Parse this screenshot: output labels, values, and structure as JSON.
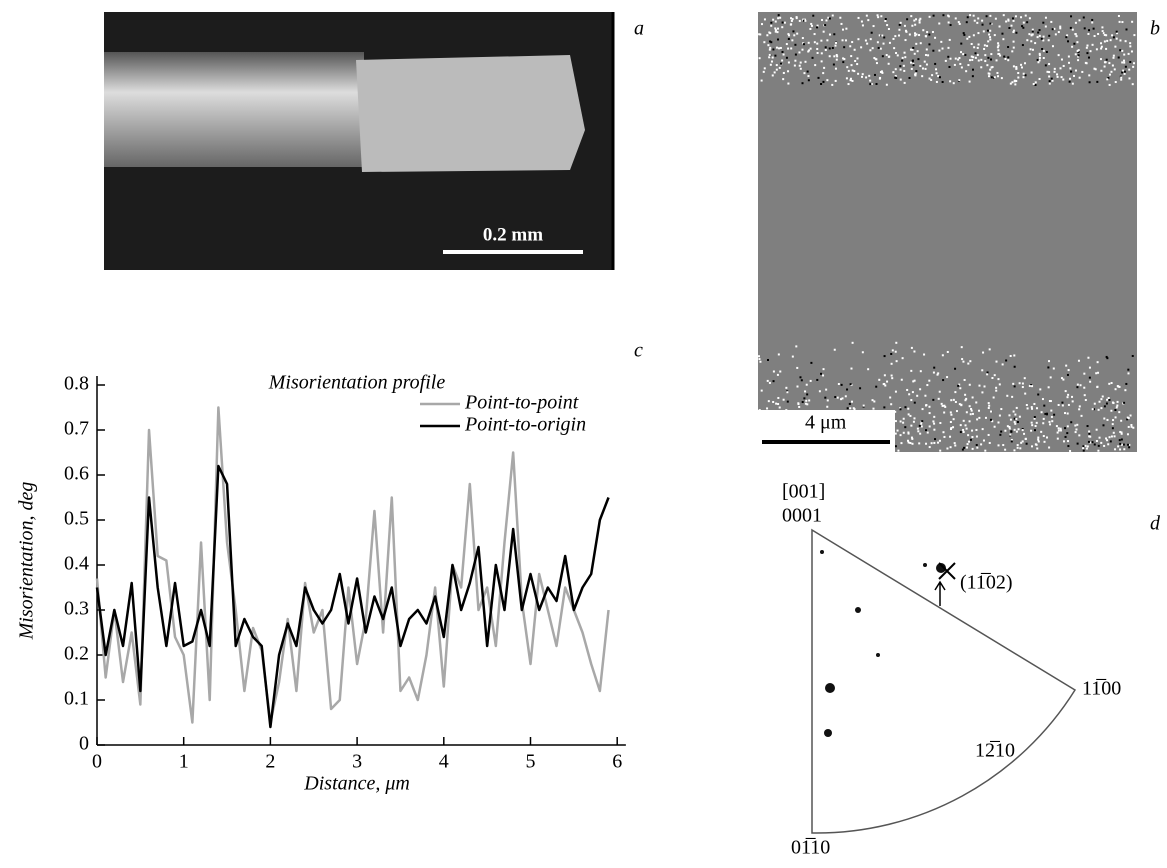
{
  "panels": {
    "a": {
      "label": "a",
      "scale_bar": "0.2 mm"
    },
    "b": {
      "label": "b",
      "scale_bar": "4 μm"
    },
    "c": {
      "label": "c"
    },
    "d": {
      "label": "d",
      "top_index": "[001]",
      "top_label": "0001",
      "marked_plane": "(11̅02)",
      "right_label": "11̅00",
      "arc_label": "12̅10",
      "bottom_label": "01̅10"
    }
  },
  "chart_data": {
    "type": "line",
    "title": "Misorientation profile",
    "x_label": "Distance, μm",
    "y_label": "Misorientation, deg",
    "x": [
      0,
      0.1,
      0.2,
      0.3,
      0.4,
      0.5,
      0.6,
      0.7,
      0.8,
      0.9,
      1,
      1.1,
      1.2,
      1.3,
      1.4,
      1.5,
      1.6,
      1.7,
      1.8,
      1.9,
      2,
      2.1,
      2.2,
      2.3,
      2.4,
      2.5,
      2.6,
      2.7,
      2.8,
      2.9,
      3,
      3.1,
      3.2,
      3.3,
      3.4,
      3.5,
      3.6,
      3.7,
      3.8,
      3.9,
      4,
      4.1,
      4.2,
      4.3,
      4.4,
      4.5,
      4.6,
      4.7,
      4.8,
      4.9,
      5,
      5.1,
      5.2,
      5.3,
      5.4,
      5.5,
      5.6,
      5.7,
      5.8,
      5.9
    ],
    "series": [
      {
        "name": "Point-to-point",
        "color": "#a8a8a8",
        "values": [
          0.37,
          0.15,
          0.3,
          0.14,
          0.25,
          0.09,
          0.7,
          0.42,
          0.41,
          0.24,
          0.2,
          0.05,
          0.45,
          0.1,
          0.75,
          0.45,
          0.3,
          0.12,
          0.26,
          0.21,
          0.05,
          0.14,
          0.28,
          0.12,
          0.36,
          0.25,
          0.3,
          0.08,
          0.1,
          0.35,
          0.18,
          0.28,
          0.52,
          0.25,
          0.55,
          0.12,
          0.15,
          0.1,
          0.2,
          0.35,
          0.13,
          0.4,
          0.35,
          0.58,
          0.3,
          0.35,
          0.22,
          0.45,
          0.65,
          0.32,
          0.18,
          0.38,
          0.3,
          0.22,
          0.35,
          0.3,
          0.25,
          0.18,
          0.12,
          0.3
        ]
      },
      {
        "name": "Point-to-origin",
        "color": "#000000",
        "values": [
          0.35,
          0.2,
          0.3,
          0.22,
          0.36,
          0.12,
          0.55,
          0.35,
          0.22,
          0.36,
          0.22,
          0.23,
          0.3,
          0.22,
          0.62,
          0.58,
          0.22,
          0.28,
          0.24,
          0.22,
          0.04,
          0.2,
          0.27,
          0.22,
          0.35,
          0.3,
          0.27,
          0.3,
          0.38,
          0.27,
          0.37,
          0.25,
          0.33,
          0.28,
          0.35,
          0.22,
          0.28,
          0.3,
          0.27,
          0.33,
          0.24,
          0.4,
          0.3,
          0.36,
          0.44,
          0.22,
          0.4,
          0.3,
          0.48,
          0.3,
          0.38,
          0.3,
          0.35,
          0.32,
          0.42,
          0.3,
          0.35,
          0.38,
          0.5,
          0.55
        ]
      }
    ],
    "xlim": [
      0,
      6.1
    ],
    "ylim": [
      0,
      0.82
    ],
    "xticks": [
      0,
      1,
      2,
      3,
      4,
      5,
      6
    ],
    "yticks": [
      0,
      0.1,
      0.2,
      0.3,
      0.4,
      0.5,
      0.6,
      0.7,
      0.8
    ],
    "legend": "upper right"
  }
}
